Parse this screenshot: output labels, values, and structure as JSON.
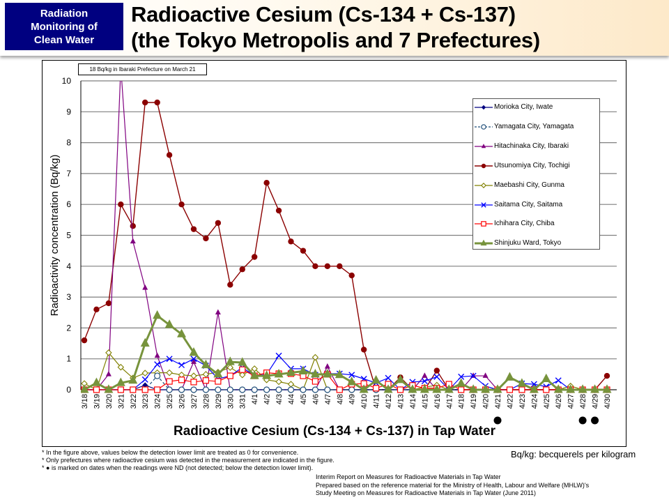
{
  "header": {
    "badge_lines": [
      "Radiation",
      "Monitoring of",
      "Clean Water"
    ],
    "title_lines": [
      "Radioactive Cesium (Cs-134 + Cs-137)",
      "(the Tokyo Metropolis and 7 Prefectures)"
    ],
    "badge_color": "#000080"
  },
  "annotation": "18 Bq/kg in Ibaraki Prefecture on March 21",
  "chart_title": "Radioactive Cesium (Cs-134 + Cs-137) in Tap Water",
  "notes": [
    "* In the figure above, values below the detection lower limit are treated as 0 for convenience.",
    "* Only prefectures where radioactive cesium was detected in the measurement are indicated in the figure.",
    "* ● is marked on dates when the readings were ND (not detected; below the detection lower limit)."
  ],
  "unit_note": "Bq/kg: becquerels per kilogram",
  "source_lines": [
    "Interim Report on Measures for Radioactive Materials in Tap Water",
    "Prepared based on the reference material for the Ministry of Health, Labour and Welfare (MHLW)'s",
    "Study Meeting on Measures for Radioactive Materials in Tap Water (June 2011)"
  ],
  "chart_data": {
    "type": "line",
    "title": "Radioactive Cesium (Cs-134 + Cs-137) in Tap Water",
    "xlabel": "",
    "ylabel": "Radioactivity concentration (Bq/kg)",
    "ylim": [
      0,
      10
    ],
    "yticks": [
      0,
      1,
      2,
      3,
      4,
      5,
      6,
      7,
      8,
      9,
      10
    ],
    "grid": true,
    "legend_position": "upper right (inside plot)",
    "categories": [
      "3/18",
      "3/19",
      "3/20",
      "3/21",
      "3/22",
      "3/23",
      "3/24",
      "3/25",
      "3/26",
      "3/27",
      "3/28",
      "3/29",
      "3/30",
      "3/31",
      "4/1",
      "4/2",
      "4/3",
      "4/4",
      "4/5",
      "4/6",
      "4/7",
      "4/8",
      "4/9",
      "4/10",
      "4/11",
      "4/12",
      "4/13",
      "4/14",
      "4/15",
      "4/16",
      "4/17",
      "4/18",
      "4/19",
      "4/20",
      "4/21",
      "4/22",
      "4/23",
      "4/24",
      "4/25",
      "4/26",
      "4/27",
      "4/28",
      "4/29",
      "4/30"
    ],
    "nd_markers": [
      "4/21",
      "4/28",
      "4/29"
    ],
    "annotations": [
      "18 Bq/kg in Ibaraki Prefecture on March 21"
    ],
    "series": [
      {
        "name": "Morioka City, Iwate",
        "color": "#000080",
        "marker": "diamond-filled",
        "dash": false,
        "width": 1.2,
        "values": [
          0,
          0,
          0,
          0,
          0,
          0.15,
          0,
          0,
          0,
          0,
          0,
          0,
          0,
          0,
          0,
          0,
          0,
          0,
          0,
          0,
          0,
          0,
          0,
          0,
          0,
          0,
          0,
          0,
          0,
          0,
          0,
          0,
          0,
          0,
          0,
          0,
          0,
          0,
          0,
          0,
          0,
          0,
          0,
          0
        ]
      },
      {
        "name": "Yamagata City, Yamagata",
        "color": "#1f4e79",
        "marker": "circle-open",
        "dash": true,
        "width": 1.2,
        "values": [
          0,
          0,
          0,
          0,
          0,
          0,
          0.45,
          0,
          0,
          0,
          0,
          0,
          0,
          0,
          0,
          0,
          0,
          0,
          0,
          0,
          0,
          0,
          0,
          0,
          0,
          0,
          0,
          0,
          0,
          0,
          0,
          0,
          0,
          0,
          0,
          0,
          0,
          0,
          0,
          0,
          0,
          0,
          0,
          0
        ]
      },
      {
        "name": "Hitachinaka City, Ibaraki",
        "color": "#800080",
        "marker": "triangle-filled",
        "dash": false,
        "width": 1.2,
        "values": [
          0,
          0,
          0.5,
          18,
          4.8,
          3.3,
          1.1,
          0,
          0,
          0.9,
          0,
          2.5,
          0,
          0,
          0,
          0,
          0,
          0,
          0,
          0,
          0.75,
          0,
          0,
          0,
          0,
          0,
          0,
          0,
          0.45,
          0,
          0,
          0,
          0.45,
          0.45,
          0,
          0,
          0,
          0,
          0,
          0,
          0,
          0,
          0,
          0
        ]
      },
      {
        "name": "Utsunomiya City, Tochigi",
        "color": "#8b0000",
        "marker": "circle-filled",
        "dash": false,
        "width": 1.4,
        "values": [
          1.6,
          2.6,
          2.8,
          6.0,
          5.3,
          9.3,
          9.3,
          7.6,
          6.0,
          5.2,
          4.9,
          5.4,
          3.4,
          3.9,
          4.3,
          6.7,
          5.8,
          4.8,
          4.5,
          4.0,
          4.0,
          4.0,
          3.7,
          1.3,
          0,
          0,
          0.4,
          0,
          0,
          0.62,
          0,
          0,
          0,
          0,
          0,
          0,
          0,
          0,
          0,
          0,
          0,
          0,
          0,
          0.45
        ]
      },
      {
        "name": "Maebashi City, Gunma",
        "color": "#808000",
        "marker": "diamond-open",
        "dash": false,
        "width": 1.2,
        "values": [
          0.2,
          0,
          1.2,
          0.73,
          0.38,
          0.54,
          0.55,
          0.55,
          0.48,
          0.45,
          0.5,
          0.57,
          0.72,
          0.48,
          0.68,
          0.32,
          0.26,
          0.18,
          0,
          1.05,
          0,
          0,
          0,
          0,
          0,
          0,
          0,
          0,
          0.08,
          0.15,
          0,
          0,
          0,
          0,
          0,
          0,
          0,
          0,
          0,
          0,
          0.12,
          0,
          0,
          0
        ]
      },
      {
        "name": "Saitama City, Saitama",
        "color": "#0000ff",
        "marker": "x",
        "dash": false,
        "width": 1.2,
        "values": [
          0,
          0,
          0,
          0,
          0,
          0.33,
          0.82,
          1.0,
          0.8,
          1.0,
          0.78,
          0.35,
          0.45,
          0.72,
          0.45,
          0.5,
          1.1,
          0.68,
          0.68,
          0.48,
          0.52,
          0.52,
          0.48,
          0.35,
          0.22,
          0.38,
          0,
          0.25,
          0.28,
          0.42,
          0,
          0.42,
          0.45,
          0.12,
          0,
          0,
          0.2,
          0.18,
          0.1,
          0.3,
          0,
          0,
          0,
          0
        ]
      },
      {
        "name": "Ichihara City, Chiba",
        "color": "#ff0000",
        "marker": "square-open",
        "dash": false,
        "width": 1.2,
        "values": [
          0,
          0,
          0,
          0,
          0,
          0,
          0,
          0.27,
          0.32,
          0.25,
          0.3,
          0.27,
          0.45,
          0.65,
          0.45,
          0.55,
          0.52,
          0.52,
          0.45,
          0.27,
          0.5,
          0,
          0.18,
          0.2,
          0.05,
          0.18,
          0,
          0.14,
          0.05,
          0.05,
          0.18,
          0,
          0,
          0,
          0,
          0,
          0,
          0,
          0,
          0,
          0,
          0,
          0,
          0
        ]
      },
      {
        "name": "Shinjuku Ward, Tokyo",
        "color": "#77933c",
        "marker": "triangle-filled",
        "dash": false,
        "width": 3,
        "values": [
          0,
          0.22,
          0,
          0.22,
          0.3,
          1.5,
          2.4,
          2.1,
          1.8,
          1.2,
          0.8,
          0.5,
          0.9,
          0.88,
          0.45,
          0.45,
          0.5,
          0.55,
          0.6,
          0.5,
          0.5,
          0.48,
          0.25,
          0,
          0.3,
          0,
          0.32,
          0,
          0,
          0,
          0,
          0.2,
          0,
          0,
          0,
          0.4,
          0.2,
          0,
          0.35,
          0,
          0,
          0,
          0,
          0
        ]
      }
    ]
  }
}
